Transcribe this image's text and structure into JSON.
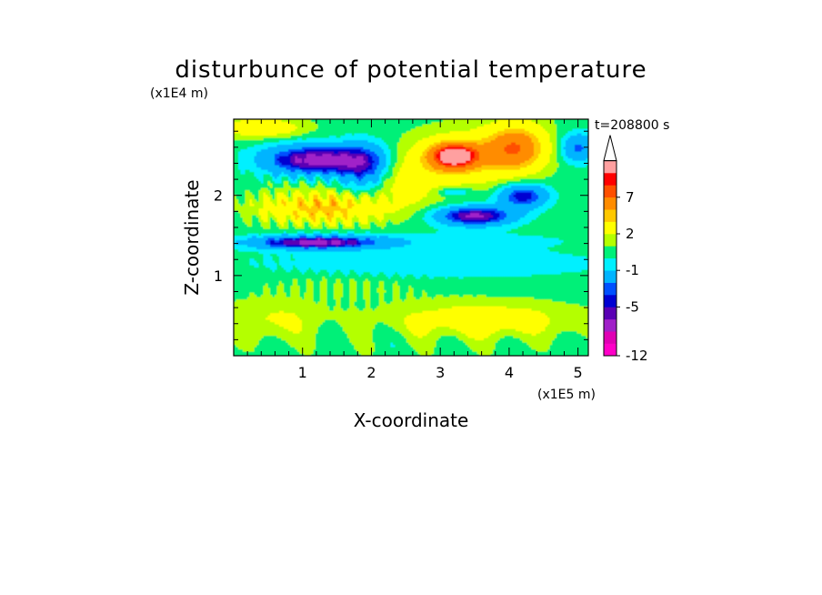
{
  "chart_data": {
    "type": "heatmap",
    "title": "disturbunce of potential temperature",
    "xlabel": "X-coordinate",
    "ylabel": "Z-coordinate",
    "x_unit": "(x1E5 m)",
    "y_unit": "(x1E4 m)",
    "time_label": "t=208800 s",
    "xlim": [
      0,
      5.15
    ],
    "ylim": [
      0,
      2.95
    ],
    "x_ticks": [
      1,
      2,
      3,
      4,
      5
    ],
    "y_ticks": [
      1,
      2
    ],
    "colorbar": {
      "levels": [
        -12,
        -10,
        -8,
        -6,
        -5,
        -4,
        -3,
        -1,
        0,
        1,
        2,
        4,
        5,
        7,
        8,
        9
      ],
      "tick_labels": [
        {
          "value": -12,
          "text": "-12"
        },
        {
          "value": -5,
          "text": "-5"
        },
        {
          "value": -1,
          "text": "-1"
        },
        {
          "value": 2,
          "text": "2"
        },
        {
          "value": 7,
          "text": "7"
        }
      ],
      "colors": [
        "#ff00c8",
        "#e000b4",
        "#a020c8",
        "#5a00b4",
        "#0000d2",
        "#0050ff",
        "#00b4ff",
        "#00f0ff",
        "#00f078",
        "#b4ff00",
        "#ffff00",
        "#ffc800",
        "#ff8c00",
        "#ff5000",
        "#ff0000",
        "#ffa0a0"
      ],
      "extend": "max"
    },
    "features": [
      {
        "x": 1.5,
        "z": 2.6,
        "value": -6
      },
      {
        "x": 1.2,
        "z": 1.4,
        "value": -6
      },
      {
        "x": 1.4,
        "z": 1.9,
        "value": 5
      },
      {
        "x": 3.2,
        "z": 2.5,
        "value": 9
      },
      {
        "x": 3.4,
        "z": 1.75,
        "value": -6
      },
      {
        "x": 4.1,
        "z": 2.0,
        "value": -5
      },
      {
        "x": 4.1,
        "z": 2.6,
        "value": 7
      },
      {
        "x": 3.6,
        "z": 0.45,
        "value": 5
      },
      {
        "x": 3.0,
        "z": 1.15,
        "value": -1
      }
    ]
  }
}
